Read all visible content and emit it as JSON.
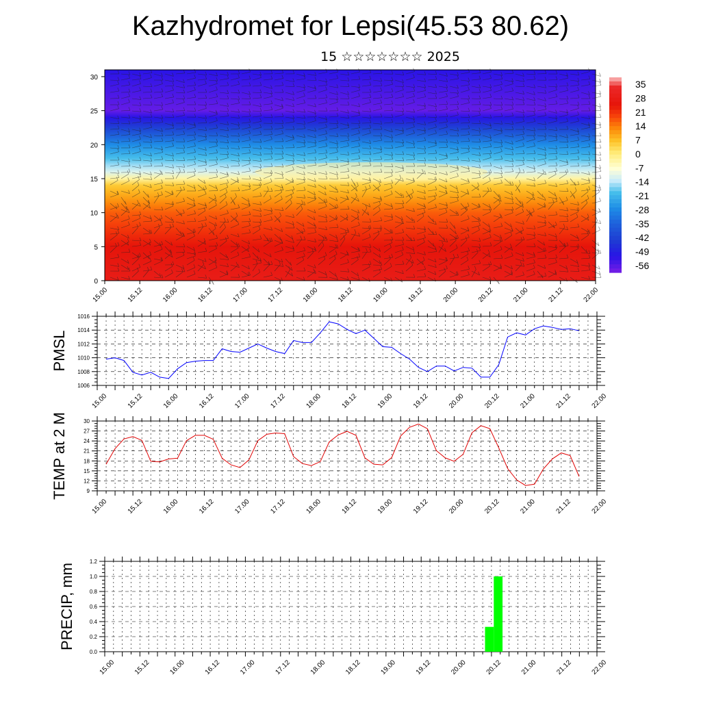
{
  "title": "Kazhydromet for Lepsi(45.53 80.62)",
  "subtitle": "15 ☆☆☆☆☆☆☆ 2025",
  "colors": {
    "pmsl_line": "#0000ff",
    "temp_line": "#e00000",
    "precip_bar": "#00ff00"
  },
  "chart_data": [
    {
      "type": "heatmap",
      "name": "upper-air-section",
      "x_tick_labels": [
        "15.00",
        "15.12",
        "16.00",
        "16.12",
        "17.00",
        "17.12",
        "18.00",
        "18.12",
        "19.00",
        "19.12",
        "20.00",
        "20.12",
        "21.00",
        "21.12",
        "22.00"
      ],
      "y_tick_labels": [
        "0",
        "5",
        "10",
        "15",
        "20",
        "25",
        "30"
      ],
      "ylim": [
        0,
        31
      ],
      "xlim": [
        0,
        14
      ],
      "colorbar_labels": [
        "35",
        "28",
        "21",
        "14",
        "7",
        "0",
        "-7",
        "-14",
        "-21",
        "-28",
        "-35",
        "-42",
        "-49",
        "-56"
      ],
      "level_profile": [
        {
          "y": 0,
          "value": 28
        },
        {
          "y": 5,
          "value": 24
        },
        {
          "y": 10,
          "value": 16
        },
        {
          "y": 14,
          "value": 5
        },
        {
          "y": 16,
          "value": -12
        },
        {
          "y": 20,
          "value": -28
        },
        {
          "y": 25,
          "value": -58
        },
        {
          "y": 31,
          "value": -52
        }
      ]
    },
    {
      "type": "line",
      "name": "pmsl",
      "ylabel": "PMSL",
      "ylim": [
        1006,
        1016
      ],
      "y_tick_labels": [
        "1006",
        "1008",
        "1010",
        "1012",
        "1014",
        "1016"
      ],
      "x_tick_labels": [
        "15.00",
        "15.12",
        "16.00",
        "16.12",
        "17.00",
        "17.12",
        "18.00",
        "18.12",
        "19.00",
        "19.12",
        "20.00",
        "20.12",
        "21.00",
        "21.12",
        "22.00"
      ],
      "x": [
        0,
        0.25,
        0.5,
        0.75,
        1,
        1.25,
        1.5,
        1.75,
        2,
        2.25,
        2.5,
        2.75,
        3,
        3.25,
        3.5,
        3.75,
        4,
        4.25,
        4.5,
        4.75,
        5,
        5.25,
        5.5,
        5.75,
        6,
        6.25,
        6.5,
        6.75,
        7,
        7.25,
        7.5,
        7.75,
        8,
        8.25,
        8.5,
        8.75,
        9,
        9.25,
        9.5,
        9.75,
        10,
        10.25,
        10.5,
        10.75,
        11,
        11.25,
        11.5,
        11.75,
        12,
        12.25,
        12.5,
        12.75,
        13,
        13.25
      ],
      "values": [
        1009.8,
        1010.0,
        1009.6,
        1007.9,
        1007.5,
        1007.9,
        1007.2,
        1007.0,
        1008.4,
        1009.3,
        1009.5,
        1009.6,
        1009.6,
        1011.3,
        1010.9,
        1010.8,
        1011.4,
        1012.0,
        1011.4,
        1010.9,
        1010.6,
        1012.5,
        1012.2,
        1012.2,
        1013.6,
        1015.2,
        1014.9,
        1014.1,
        1013.5,
        1014.0,
        1012.8,
        1011.6,
        1011.5,
        1010.6,
        1009.8,
        1008.6,
        1008.0,
        1008.8,
        1008.8,
        1008.1,
        1008.6,
        1008.5,
        1007.2,
        1007.2,
        1009.0,
        1013.0,
        1013.6,
        1013.3,
        1014.2,
        1014.6,
        1014.4,
        1014.1,
        1014.2,
        1013.9
      ]
    },
    {
      "type": "line",
      "name": "temp2m",
      "ylabel": "TEMP at 2 M",
      "ylim": [
        9,
        30
      ],
      "y_tick_labels": [
        "9",
        "12",
        "15",
        "18",
        "21",
        "24",
        "27",
        "30"
      ],
      "x_tick_labels": [
        "15.00",
        "15.12",
        "16.00",
        "16.12",
        "17.00",
        "17.12",
        "18.00",
        "18.12",
        "19.00",
        "19.12",
        "20.00",
        "20.12",
        "21.00",
        "21.12",
        "22.00"
      ],
      "x": [
        0,
        0.25,
        0.5,
        0.75,
        1,
        1.25,
        1.5,
        1.75,
        2,
        2.25,
        2.5,
        2.75,
        3,
        3.25,
        3.5,
        3.75,
        4,
        4.25,
        4.5,
        4.75,
        5,
        5.25,
        5.5,
        5.75,
        6,
        6.25,
        6.5,
        6.75,
        7,
        7.25,
        7.5,
        7.75,
        8,
        8.25,
        8.5,
        8.75,
        9,
        9.25,
        9.5,
        9.75,
        10,
        10.25,
        10.5,
        10.75,
        11,
        11.25,
        11.5,
        11.75,
        12,
        12.25,
        12.5,
        12.75,
        13,
        13.25
      ],
      "values": [
        17.0,
        21.7,
        24.6,
        25.3,
        24.2,
        17.9,
        17.7,
        18.6,
        18.8,
        24.1,
        25.7,
        25.7,
        24.5,
        18.8,
        16.8,
        16.0,
        18.3,
        24.1,
        26.0,
        26.4,
        26.2,
        19.3,
        17.2,
        16.6,
        17.8,
        23.7,
        25.8,
        26.9,
        25.7,
        18.9,
        17.0,
        16.8,
        19.0,
        25.5,
        28.1,
        29.1,
        27.7,
        21.1,
        18.9,
        17.9,
        20.0,
        26.5,
        28.6,
        27.7,
        21.9,
        15.7,
        12.3,
        10.6,
        11.0,
        15.6,
        18.6,
        20.4,
        19.6,
        13.3
      ]
    },
    {
      "type": "bar",
      "name": "precip",
      "ylabel": "PRECIP, mm",
      "ylim": [
        0,
        1.2
      ],
      "y_tick_labels": [
        "0.0",
        "0.2",
        "0.4",
        "0.6",
        "0.8",
        "1.0",
        "1.2"
      ],
      "x_tick_labels": [
        "15.00",
        "15.12",
        "16.00",
        "16.12",
        "17.00",
        "17.12",
        "18.00",
        "18.12",
        "19.00",
        "19.12",
        "20.00",
        "20.12",
        "21.00",
        "21.12",
        "22.00"
      ],
      "x": [
        10.75,
        11.0
      ],
      "values": [
        0.33,
        1.0
      ]
    }
  ]
}
